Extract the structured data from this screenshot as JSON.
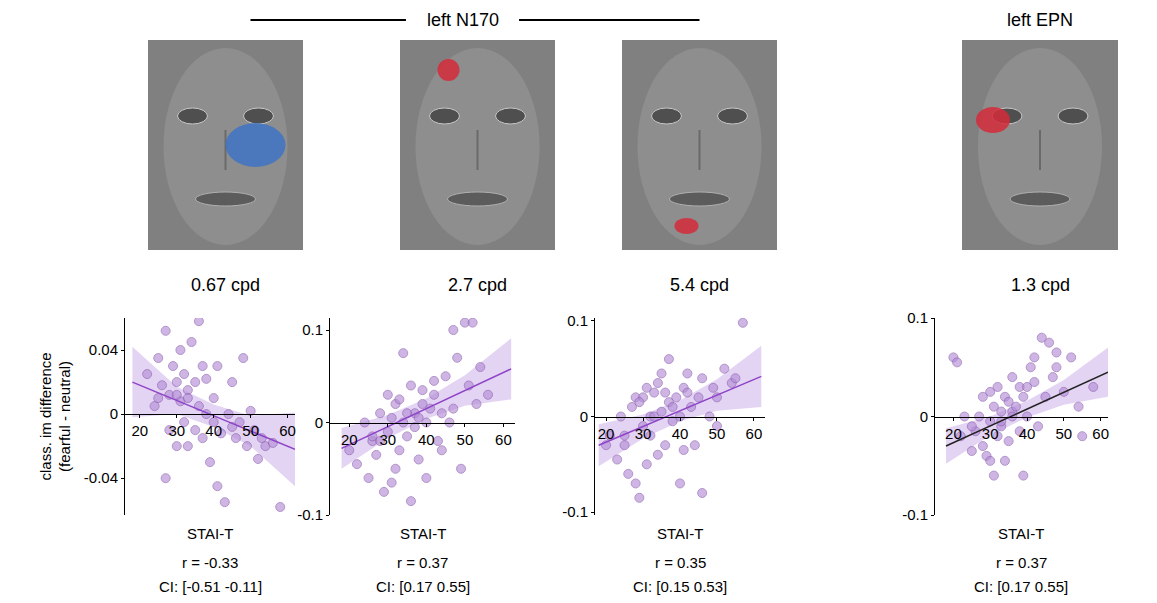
{
  "headers": [
    {
      "text": "left N170",
      "span": 3
    },
    {
      "text": "left EPN",
      "span": 1
    }
  ],
  "y_label": "class. im difference (fearful - neutral)",
  "chart_data": [
    {
      "type": "scatter",
      "subtitle": "0.67 cpd",
      "x_label": "STAI-T",
      "image": {
        "highlight_color": "#3f73c4"
      },
      "xlim": [
        16,
        62
      ],
      "xticks": [
        20,
        30,
        40,
        50,
        60
      ],
      "ylim": [
        -0.063,
        0.06
      ],
      "yticks": [
        -0.04,
        0,
        0.04
      ],
      "color": "#b48ed6",
      "x": [
        22,
        24,
        25,
        26,
        27,
        28,
        28,
        29,
        30,
        30,
        31,
        31,
        32,
        32,
        33,
        33,
        34,
        35,
        35,
        36,
        36,
        37,
        38,
        38,
        39,
        40,
        40,
        41,
        42,
        43,
        44,
        45,
        46,
        47,
        48,
        49,
        50,
        51,
        52,
        53,
        54,
        56,
        58,
        27,
        33,
        37,
        45,
        30,
        41,
        25
      ],
      "y": [
        0.025,
        0.005,
        0.035,
        0.018,
        0.052,
        0.012,
        -0.01,
        0.03,
        0.02,
        -0.02,
        0.008,
        0.04,
        0.025,
        -0.005,
        0.015,
        0.01,
        0.045,
        -0.01,
        0.02,
        0.058,
        0.005,
        -0.015,
        0.022,
        0.0,
        -0.03,
        0.01,
        -0.005,
        0.03,
        -0.012,
        -0.055,
        0.0,
        0.02,
        -0.015,
        -0.005,
        0.035,
        -0.02,
        0.002,
        -0.01,
        -0.028,
        -0.015,
        -0.02,
        -0.018,
        -0.058,
        -0.04,
        -0.02,
        0.03,
        -0.008,
        0.012,
        -0.045,
        0.01
      ],
      "fit": {
        "x": [
          18,
          62
        ],
        "y": [
          0.02,
          -0.022
        ],
        "color": "#8e44c8"
      },
      "ci_band": {
        "x": [
          18,
          30,
          40,
          50,
          62
        ],
        "lower": [
          -0.002,
          0.0,
          -0.008,
          -0.02,
          -0.045
        ],
        "upper": [
          0.042,
          0.017,
          0.006,
          -0.001,
          0.001
        ]
      },
      "annotations": [
        "r = -0.33",
        "CI: [-0.51 -0.11]"
      ]
    },
    {
      "type": "scatter",
      "subtitle": "2.7 cpd",
      "x_label": "STAI-T",
      "image": {
        "highlight_color": "#d42a3a"
      },
      "xlim": [
        15,
        63
      ],
      "xticks": [
        20,
        30,
        40,
        50,
        60
      ],
      "ylim": [
        -0.1,
        0.113
      ],
      "yticks": [
        -0.1,
        0,
        0.1
      ],
      "color": "#b48ed6",
      "x": [
        20,
        22,
        24,
        25,
        26,
        27,
        28,
        29,
        30,
        30,
        31,
        32,
        32,
        33,
        34,
        34,
        35,
        36,
        36,
        37,
        38,
        38,
        39,
        40,
        40,
        41,
        42,
        43,
        44,
        45,
        46,
        47,
        48,
        49,
        50,
        51,
        52,
        54,
        56,
        28,
        33,
        37,
        42,
        47,
        31,
        35,
        39,
        26,
        44,
        53
      ],
      "y": [
        -0.03,
        -0.045,
        0.0,
        -0.06,
        -0.02,
        -0.035,
        0.01,
        -0.075,
        0.03,
        -0.01,
        0.005,
        -0.05,
        0.02,
        -0.03,
        0.075,
        0.0,
        -0.015,
        0.04,
        -0.085,
        0.01,
        0.005,
        -0.04,
        0.02,
        0.0,
        -0.06,
        0.015,
        0.03,
        -0.02,
        0.01,
        0.05,
        0.0,
        0.1,
        0.07,
        -0.05,
        0.108,
        0.04,
        0.108,
        0.06,
        0.03,
        -0.02,
        0.025,
        -0.005,
        0.045,
        0.015,
        -0.065,
        0.01,
        0.035,
        -0.015,
        -0.03,
        0.02
      ],
      "fit": {
        "x": [
          18,
          62
        ],
        "y": [
          -0.028,
          0.058
        ],
        "color": "#8e44c8"
      },
      "ci_band": {
        "x": [
          18,
          30,
          40,
          50,
          62
        ],
        "lower": [
          -0.05,
          -0.017,
          0.004,
          0.018,
          0.025
        ],
        "upper": [
          -0.006,
          0.008,
          0.026,
          0.051,
          0.091
        ]
      },
      "annotations": [
        "r = 0.37",
        "CI: [0.17 0.55]"
      ]
    },
    {
      "type": "scatter",
      "subtitle": "5.4 cpd",
      "x_label": "STAI-T",
      "image": {
        "highlight_color": "#d42a3a"
      },
      "xlim": [
        17,
        63
      ],
      "xticks": [
        20,
        30,
        40,
        50,
        60
      ],
      "ylim": [
        -0.103,
        0.103
      ],
      "yticks": [
        -0.1,
        0,
        0.1
      ],
      "color": "#b48ed6",
      "x": [
        20,
        21,
        23,
        24,
        25,
        26,
        27,
        28,
        29,
        30,
        30,
        31,
        32,
        32,
        33,
        34,
        35,
        35,
        36,
        37,
        37,
        38,
        39,
        40,
        40,
        41,
        42,
        43,
        44,
        45,
        46,
        48,
        49,
        50,
        52,
        54,
        57,
        28,
        31,
        34,
        38,
        42,
        46,
        29,
        36,
        41,
        33,
        25,
        50,
        55
      ],
      "y": [
        -0.03,
        -0.02,
        -0.045,
        0.0,
        -0.03,
        -0.06,
        0.01,
        0.02,
        -0.085,
        0.02,
        -0.01,
        0.03,
        -0.02,
        0.0,
        0.025,
        -0.04,
        0.045,
        0.005,
        -0.03,
        0.015,
        0.06,
        -0.005,
        0.02,
        0.0,
        -0.07,
        0.03,
        0.025,
        0.01,
        -0.03,
        0.02,
        0.04,
        0.0,
        0.03,
        0.02,
        0.05,
        0.035,
        0.098,
        -0.07,
        -0.05,
        0.035,
        0.01,
        0.045,
        -0.08,
        0.015,
        0.025,
        -0.035,
        0.0,
        -0.02,
        -0.01,
        0.04
      ],
      "fit": {
        "x": [
          18,
          62
        ],
        "y": [
          -0.03,
          0.042
        ],
        "color": "#8e44c8"
      },
      "ci_band": {
        "x": [
          18,
          30,
          40,
          50,
          62
        ],
        "lower": [
          -0.052,
          -0.023,
          -0.005,
          0.006,
          0.01
        ],
        "upper": [
          -0.008,
          0.002,
          0.017,
          0.039,
          0.074
        ]
      },
      "annotations": [
        "r = 0.35",
        "CI: [0.15 0.53]"
      ]
    },
    {
      "type": "scatter",
      "subtitle": "1.3 cpd",
      "x_label": "STAI-T",
      "image": {
        "highlight_color": "#d42a3a"
      },
      "xlim": [
        15,
        62
      ],
      "xticks": [
        20,
        30,
        40,
        50,
        60
      ],
      "ylim": [
        -0.1,
        0.1
      ],
      "yticks": [
        -0.1,
        0,
        0.1
      ],
      "color": "#b48ed6",
      "x": [
        20,
        21,
        22,
        23,
        25,
        26,
        27,
        28,
        29,
        30,
        30,
        31,
        31,
        32,
        32,
        33,
        33,
        34,
        34,
        35,
        35,
        36,
        36,
        37,
        38,
        38,
        39,
        40,
        40,
        41,
        42,
        43,
        44,
        45,
        46,
        47,
        48,
        50,
        52,
        54,
        55,
        58,
        28,
        30,
        33,
        36,
        39,
        42,
        25,
        48
      ],
      "y": [
        0.06,
        0.055,
        -0.02,
        0.0,
        -0.035,
        -0.015,
        0.0,
        0.02,
        -0.04,
        0.025,
        -0.005,
        0.01,
        -0.06,
        0.03,
        -0.02,
        -0.01,
        0.005,
        0.02,
        -0.045,
        0.015,
        -0.025,
        0.04,
        0.005,
        0.01,
        0.03,
        -0.015,
        0.02,
        0.03,
        0.0,
        0.05,
        0.035,
        -0.01,
        0.08,
        0.02,
        0.075,
        0.04,
        0.05,
        0.025,
        0.06,
        0.01,
        -0.02,
        0.03,
        -0.03,
        -0.045,
        -0.005,
        0.0,
        -0.06,
        0.06,
        -0.01,
        0.065
      ],
      "fit": {
        "x": [
          18,
          62
        ],
        "y": [
          -0.03,
          0.045
        ],
        "color": "#222222"
      },
      "ci_band": {
        "x": [
          18,
          30,
          40,
          50,
          62
        ],
        "lower": [
          -0.048,
          -0.019,
          -0.001,
          0.012,
          0.02
        ],
        "upper": [
          -0.012,
          0.0,
          0.016,
          0.037,
          0.07
        ]
      },
      "annotations": [
        "r = 0.37",
        "CI: [0.17 0.55]"
      ]
    }
  ]
}
